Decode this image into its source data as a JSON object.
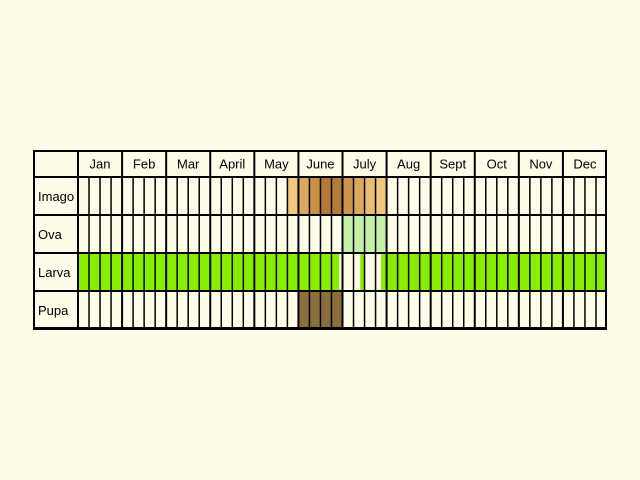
{
  "chart_data": {
    "type": "table",
    "months": [
      "Jan",
      "Feb",
      "Mar",
      "April",
      "May",
      "June",
      "July",
      "Aug",
      "Sept",
      "Oct",
      "Nov",
      "Dec"
    ],
    "weeks_per_month": 4,
    "stages": [
      {
        "name": "Imago",
        "periods": [
          {
            "start_week": 19,
            "end_week": 20,
            "color": "#f1c77e"
          },
          {
            "start_week": 20,
            "end_week": 21,
            "color": "#d9a85c"
          },
          {
            "start_week": 21,
            "end_week": 22,
            "color": "#c99243"
          },
          {
            "start_week": 22,
            "end_week": 24,
            "color": "#b57b36"
          },
          {
            "start_week": 24,
            "end_week": 25,
            "color": "#cc944a"
          },
          {
            "start_week": 25,
            "end_week": 26,
            "color": "#dca95d"
          },
          {
            "start_week": 26,
            "end_week": 27,
            "color": "#e9bd72"
          },
          {
            "start_week": 27,
            "end_week": 28,
            "color": "#f1c77e"
          }
        ]
      },
      {
        "name": "Ova",
        "periods": [
          {
            "start_week": 24,
            "end_week": 28,
            "color": "#c6f0a8"
          }
        ]
      },
      {
        "name": "Larva",
        "periods": [
          {
            "start_week": 0,
            "end_week": 23.7,
            "color": "#88ee00"
          },
          {
            "start_week": 25.6,
            "end_week": 26,
            "color": "#88ee00"
          },
          {
            "start_week": 27.5,
            "end_week": 48,
            "color": "#88ee00"
          }
        ]
      },
      {
        "name": "Pupa",
        "periods": [
          {
            "start_week": 20,
            "end_week": 24,
            "color": "#8a6f3d"
          }
        ]
      }
    ],
    "grid_color": "#000000",
    "background_color": "#fdfce8"
  }
}
